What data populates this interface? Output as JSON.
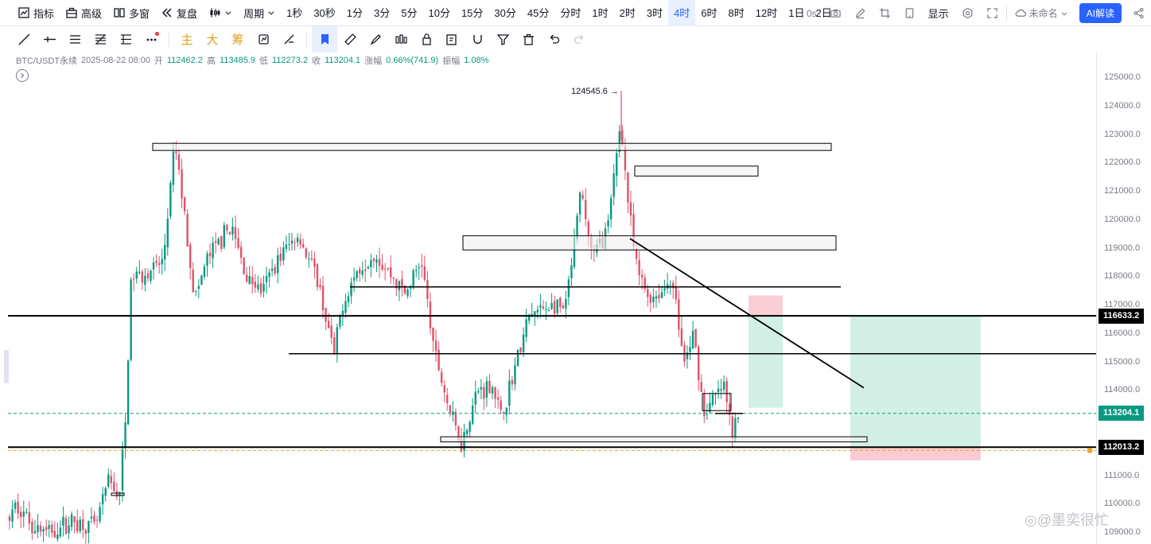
{
  "toolbar": {
    "indicators_label": "指标",
    "advanced_label": "高级",
    "multi_window_label": "多窗",
    "replay_label": "复盘",
    "period_label": "周期",
    "intervals": [
      "1秒",
      "30秒",
      "1分",
      "3分",
      "5分",
      "10分",
      "15分",
      "30分",
      "45分",
      "分时",
      "1时",
      "2时",
      "3时",
      "4时",
      "6时",
      "8时",
      "12时",
      "1日",
      "2日"
    ],
    "active_interval": "4时",
    "countdown": "0s",
    "display_label": "显示",
    "layout_name": "未命名",
    "ai_label": "AI解读"
  },
  "drawing_toolbar": {
    "text_tools": [
      "主",
      "大",
      "筹"
    ]
  },
  "legend": {
    "symbol": "BTC/USDT永续",
    "datetime": "2025-08-22 08:00",
    "open_label": "开",
    "open": "112462.2",
    "high_label": "高",
    "high": "113485.9",
    "low_label": "低",
    "low": "112273.2",
    "close_label": "收",
    "close": "113204.1",
    "change_label": "涨幅",
    "change": "0.66%(741.9)",
    "amplitude_label": "振幅",
    "amplitude": "1.08%"
  },
  "colors": {
    "up": "#089981",
    "down": "#e0526a",
    "accent": "#2962ff",
    "line": "#000000"
  },
  "price_badges": {
    "current": "113204.1",
    "level_upper": "116633.2",
    "level_lower": "112013.2"
  },
  "watermark": "◎@墨奕很忙",
  "chart_data": {
    "type": "candlestick",
    "symbol": "BTC/USDT永续",
    "interval": "4h",
    "ylim": [
      109000,
      125500
    ],
    "yticks": [
      125000,
      124000,
      123000,
      122000,
      121000,
      120000,
      119000,
      118000,
      117000,
      116000,
      115000,
      114000,
      113000,
      112000,
      111000,
      110000,
      109000
    ],
    "key_points": [
      {
        "label": "start",
        "price": 110000
      },
      {
        "label": "rally_top",
        "price": 123300
      },
      {
        "label": "range_low",
        "price": 112100
      },
      {
        "label": "high_marker",
        "price": 124545.6
      },
      {
        "label": "current_close",
        "price": 113204.1
      }
    ],
    "horizontal_levels": [
      116633.2,
      112013.2,
      117650,
      115300
    ],
    "zones": [
      {
        "top": 122700,
        "bottom": 122450
      },
      {
        "top": 121900,
        "bottom": 121550
      },
      {
        "top": 119450,
        "bottom": 118950
      },
      {
        "top": 113600,
        "bottom": 113400
      }
    ],
    "trend_line": {
      "from": 119350,
      "to": 114100
    },
    "annotations": [
      "124545.6"
    ],
    "grid": false,
    "candle_count": 260
  }
}
